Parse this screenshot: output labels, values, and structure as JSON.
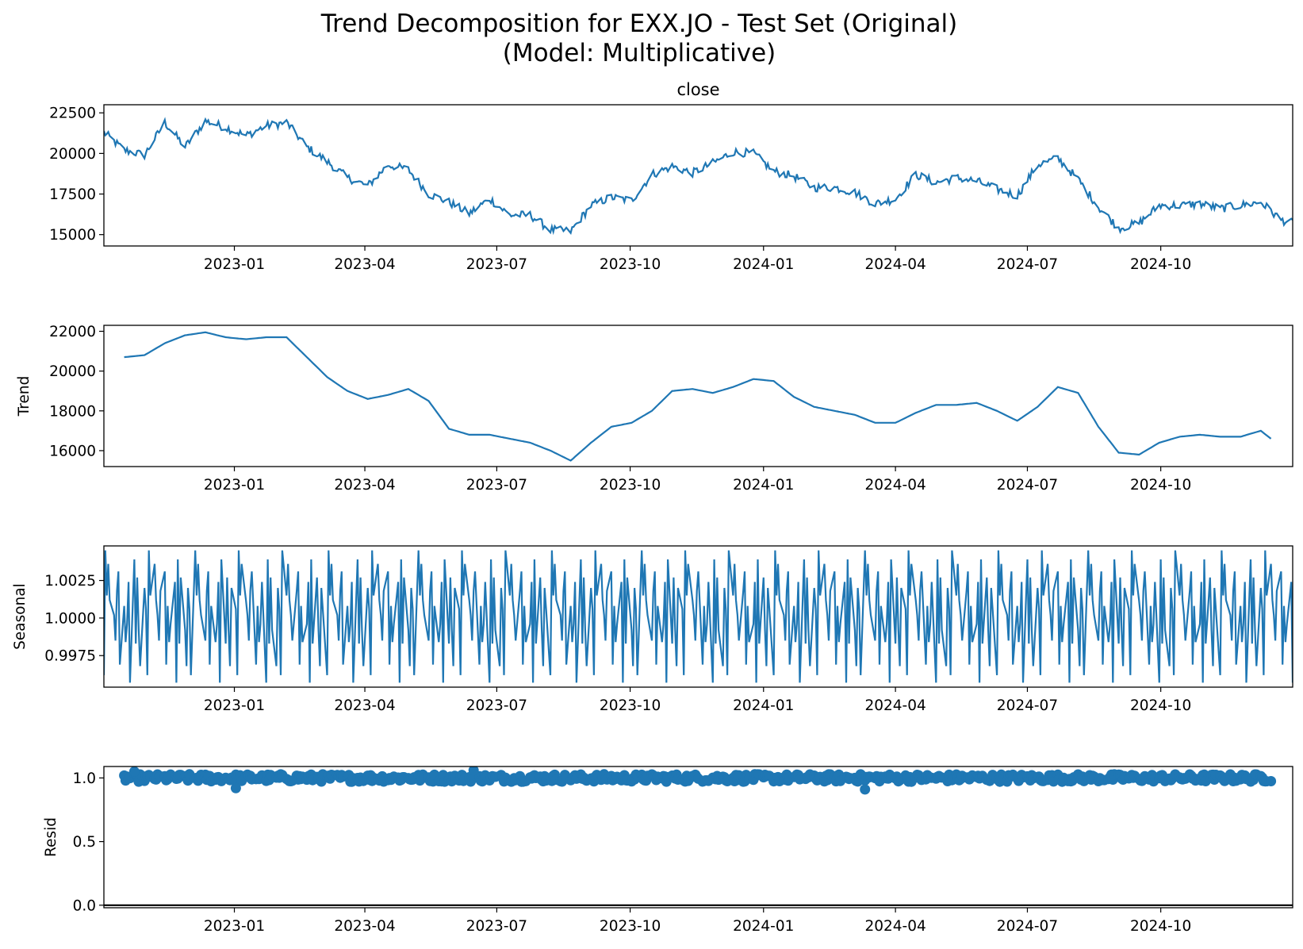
{
  "figure": {
    "title_line1": "Trend Decomposition for EXX.JO - Test Set (Original)",
    "title_line2": "(Model: Multiplicative)",
    "line_color": "#1f77b4"
  },
  "chart_data": [
    {
      "type": "line",
      "title": "close",
      "ylabel": "",
      "xlim": [
        "2022-10-03",
        "2024-12-31"
      ],
      "ylim": [
        14300,
        23000
      ],
      "yticks": [
        15000,
        17500,
        20000,
        22500
      ],
      "ytick_labels": [
        "15000",
        "17500",
        "20000",
        "22500"
      ],
      "xticks": [
        "2023-01-01",
        "2023-04-01",
        "2023-07-01",
        "2023-10-01",
        "2024-01-01",
        "2024-04-01",
        "2024-07-01",
        "2024-10-01"
      ],
      "xtick_labels": [
        "2023-01",
        "2023-04",
        "2023-07",
        "2023-10",
        "2024-01",
        "2024-04",
        "2024-07",
        "2024-10"
      ],
      "grid": false,
      "series": [
        {
          "x": [
            "2022-10-03",
            "2022-10-17",
            "2022-10-31",
            "2022-11-14",
            "2022-11-28",
            "2022-12-12",
            "2022-12-26",
            "2023-01-09",
            "2023-01-23",
            "2023-02-06",
            "2023-02-20",
            "2023-03-06",
            "2023-03-20",
            "2023-04-03",
            "2023-04-17",
            "2023-05-01",
            "2023-05-15",
            "2023-05-29",
            "2023-06-12",
            "2023-06-26",
            "2023-07-10",
            "2023-07-24",
            "2023-08-07",
            "2023-08-21",
            "2023-09-04",
            "2023-09-18",
            "2023-10-02",
            "2023-10-16",
            "2023-10-30",
            "2023-11-13",
            "2023-11-27",
            "2023-12-11",
            "2023-12-25",
            "2024-01-08",
            "2024-01-22",
            "2024-02-05",
            "2024-02-19",
            "2024-03-04",
            "2024-03-18",
            "2024-04-01",
            "2024-04-15",
            "2024-04-29",
            "2024-05-13",
            "2024-05-27",
            "2024-06-10",
            "2024-06-24",
            "2024-07-08",
            "2024-07-22",
            "2024-08-05",
            "2024-08-19",
            "2024-09-02",
            "2024-09-16",
            "2024-09-30",
            "2024-10-14",
            "2024-10-28",
            "2024-11-11",
            "2024-11-25",
            "2024-12-09",
            "2024-12-23",
            "2024-12-31"
          ],
          "values": [
            21300,
            20200,
            19900,
            21900,
            20400,
            22000,
            21600,
            21100,
            21700,
            21900,
            20400,
            19500,
            18500,
            18000,
            19300,
            19000,
            17500,
            17000,
            16300,
            17200,
            16200,
            16200,
            15300,
            15200,
            16800,
            17300,
            17100,
            18700,
            19200,
            18800,
            19400,
            20100,
            20000,
            18900,
            18600,
            17900,
            17900,
            17600,
            16900,
            17200,
            18700,
            18200,
            18500,
            18300,
            17800,
            17400,
            19300,
            19700,
            18400,
            16700,
            15400,
            15700,
            16800,
            16800,
            16900,
            16600,
            16800,
            17000,
            15900,
            15700
          ]
        }
      ]
    },
    {
      "type": "line",
      "title": "",
      "ylabel": "Trend",
      "xlim": [
        "2022-10-03",
        "2024-12-31"
      ],
      "ylim": [
        15200,
        22300
      ],
      "yticks": [
        16000,
        18000,
        20000,
        22000
      ],
      "ytick_labels": [
        "16000",
        "18000",
        "20000",
        "22000"
      ],
      "xticks": [
        "2023-01-01",
        "2023-04-01",
        "2023-07-01",
        "2023-10-01",
        "2024-01-01",
        "2024-04-01",
        "2024-07-01",
        "2024-10-01"
      ],
      "xtick_labels": [
        "2023-01",
        "2023-04",
        "2023-07",
        "2023-10",
        "2024-01",
        "2024-04",
        "2024-07",
        "2024-10"
      ],
      "grid": false,
      "series": [
        {
          "x": [
            "2022-10-17",
            "2022-10-31",
            "2022-11-14",
            "2022-11-28",
            "2022-12-12",
            "2022-12-26",
            "2023-01-09",
            "2023-01-23",
            "2023-02-06",
            "2023-02-20",
            "2023-03-06",
            "2023-03-20",
            "2023-04-03",
            "2023-04-17",
            "2023-05-01",
            "2023-05-15",
            "2023-05-29",
            "2023-06-12",
            "2023-06-26",
            "2023-07-10",
            "2023-07-24",
            "2023-08-07",
            "2023-08-21",
            "2023-09-04",
            "2023-09-18",
            "2023-10-02",
            "2023-10-16",
            "2023-10-30",
            "2023-11-13",
            "2023-11-27",
            "2023-12-11",
            "2023-12-25",
            "2024-01-08",
            "2024-01-22",
            "2024-02-05",
            "2024-02-19",
            "2024-03-04",
            "2024-03-18",
            "2024-04-01",
            "2024-04-15",
            "2024-04-29",
            "2024-05-13",
            "2024-05-27",
            "2024-06-10",
            "2024-06-24",
            "2024-07-08",
            "2024-07-22",
            "2024-08-05",
            "2024-08-19",
            "2024-09-02",
            "2024-09-16",
            "2024-09-30",
            "2024-10-14",
            "2024-10-28",
            "2024-11-11",
            "2024-11-25",
            "2024-12-09",
            "2024-12-16"
          ],
          "values": [
            20700,
            20800,
            21400,
            21800,
            21950,
            21700,
            21600,
            21700,
            21700,
            20700,
            19700,
            19000,
            18600,
            18800,
            19100,
            18500,
            17100,
            16800,
            16800,
            16600,
            16400,
            16000,
            15500,
            16400,
            17200,
            17400,
            18000,
            19000,
            19100,
            18900,
            19200,
            19600,
            19500,
            18700,
            18200,
            18000,
            17800,
            17400,
            17400,
            17900,
            18300,
            18300,
            18400,
            18000,
            17500,
            18200,
            19200,
            18900,
            17200,
            15900,
            15800,
            16400,
            16700,
            16800,
            16700,
            16700,
            17000,
            16600
          ]
        }
      ]
    },
    {
      "type": "line",
      "title": "",
      "ylabel": "Seasonal",
      "xlim": [
        "2022-10-03",
        "2024-12-31"
      ],
      "ylim": [
        0.9954,
        1.0048
      ],
      "yticks": [
        0.9975,
        1.0,
        1.0025
      ],
      "ytick_labels": [
        "0.9975",
        "1.0000",
        "1.0025"
      ],
      "xticks": [
        "2023-01-01",
        "2023-04-01",
        "2023-07-01",
        "2023-10-01",
        "2024-01-01",
        "2024-04-01",
        "2024-07-01",
        "2024-10-01"
      ],
      "xtick_labels": [
        "2023-01",
        "2023-04",
        "2023-07",
        "2023-10",
        "2024-01",
        "2024-04",
        "2024-07",
        "2024-10"
      ],
      "grid": false,
      "period_pattern": [
        0.9962,
        1.0045,
        1.0015,
        1.0036,
        1.0012,
        1.0002,
        0.9985,
        1.0018,
        1.0031,
        0.9969,
        1.0008,
        0.9984,
        0.9996,
        1.0024,
        0.9957,
        1.0039,
        0.9983,
        1.0027,
        0.9992,
        0.9968,
        1.002,
        1.0006
      ],
      "period_days": 30
    },
    {
      "type": "scatter",
      "title": "",
      "ylabel": "Resid",
      "xlim": [
        "2022-10-03",
        "2024-12-31"
      ],
      "ylim": [
        -0.02,
        1.09
      ],
      "yticks": [
        0.0,
        0.5,
        1.0
      ],
      "ytick_labels": [
        "0.0",
        "0.5",
        "1.0"
      ],
      "xticks": [
        "2023-01-01",
        "2023-04-01",
        "2023-07-01",
        "2023-10-01",
        "2024-01-01",
        "2024-04-01",
        "2024-07-01",
        "2024-10-01"
      ],
      "xtick_labels": [
        "2023-01",
        "2023-04",
        "2023-07",
        "2023-10",
        "2024-01",
        "2024-04",
        "2024-07",
        "2024-10"
      ],
      "grid": false,
      "baseline": 0.0,
      "x_range": [
        "2022-10-17",
        "2024-12-16"
      ],
      "typical_value": 1.0,
      "spread": 0.03,
      "notable_points": [
        {
          "x": "2023-01-02",
          "value": 0.92
        },
        {
          "x": "2024-03-11",
          "value": 0.91
        },
        {
          "x": "2023-06-15",
          "value": 1.06
        },
        {
          "x": "2022-10-24",
          "value": 1.05
        }
      ]
    }
  ]
}
